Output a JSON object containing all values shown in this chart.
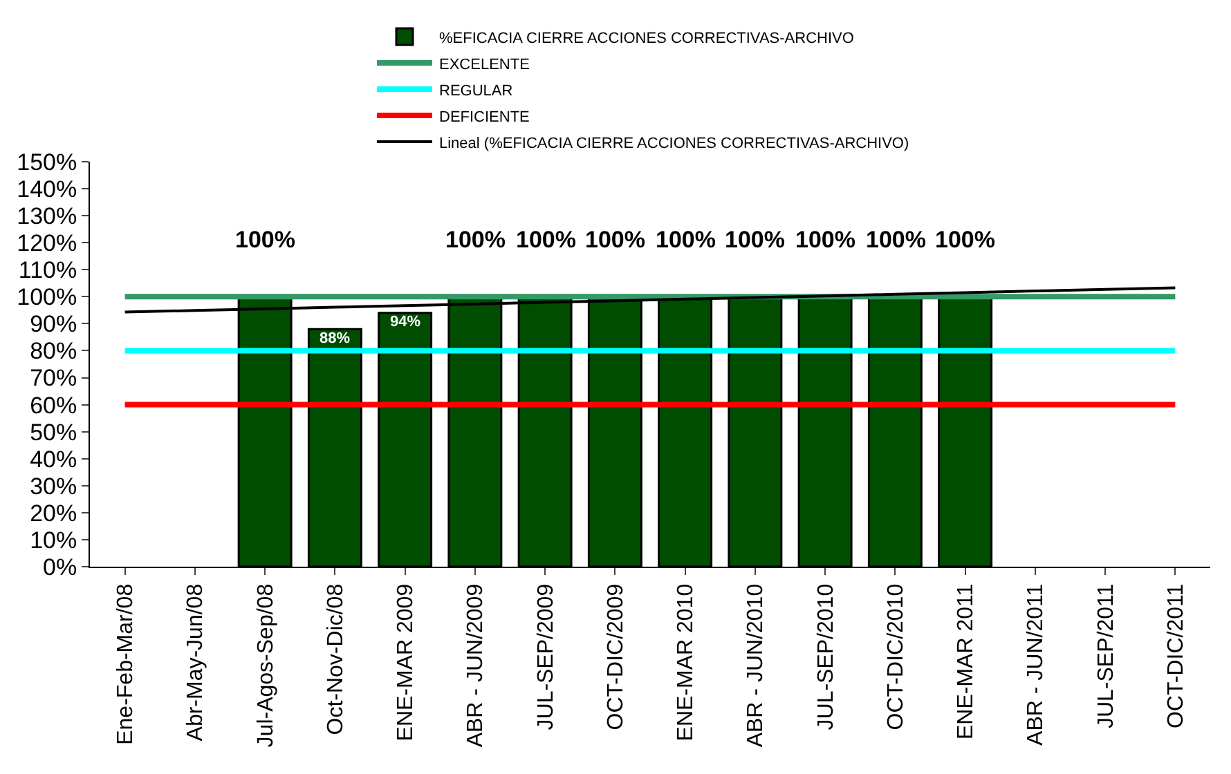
{
  "chart_data": {
    "type": "bar",
    "categories": [
      "Ene-Feb-Mar/08",
      "Abr-May-Jun/08",
      "Jul-Agos-Sep/08",
      "Oct-Nov-Dic/08",
      "ENE-MAR 2009",
      "ABR - JUN/2009",
      "JUL-SEP/2009",
      "OCT-DIC/2009",
      "ENE-MAR 2010",
      "ABR - JUN/2010",
      "JUL-SEP/2010",
      "OCT-DIC/2010",
      "ENE-MAR 2011",
      "ABR - JUN/2011",
      "JUL-SEP/2011",
      "OCT-DIC/2011"
    ],
    "series": [
      {
        "name": "%EFICACIA CIERRE ACCIONES CORRECTIVAS-ARCHIVO",
        "color": "#004d00",
        "values": [
          null,
          null,
          100,
          88,
          94,
          100,
          100,
          100,
          100,
          100,
          100,
          100,
          100,
          null,
          null,
          null
        ],
        "value_labels": [
          null,
          null,
          "100%",
          "88%",
          "94%",
          "100%",
          "100%",
          "100%",
          "100%",
          "100%",
          "100%",
          "100%",
          "100%",
          null,
          null,
          null
        ]
      },
      {
        "name": "EXCELENTE",
        "type": "line",
        "color": "#339966",
        "values": [
          100,
          100,
          100,
          100,
          100,
          100,
          100,
          100,
          100,
          100,
          100,
          100,
          100,
          100,
          100,
          100
        ]
      },
      {
        "name": "REGULAR",
        "type": "line",
        "color": "#00ffff",
        "values": [
          80,
          80,
          80,
          80,
          80,
          80,
          80,
          80,
          80,
          80,
          80,
          80,
          80,
          80,
          80,
          80
        ]
      },
      {
        "name": "DEFICIENTE",
        "type": "line",
        "color": "#ff0000",
        "values": [
          60,
          60,
          60,
          60,
          60,
          60,
          60,
          60,
          60,
          60,
          60,
          60,
          60,
          60,
          60,
          60
        ]
      },
      {
        "name": "Lineal (%EFICACIA CIERRE ACCIONES CORRECTIVAS-ARCHIVO)",
        "type": "line",
        "color": "#000000",
        "values": [
          94.3,
          94.9,
          95.5,
          96.1,
          96.7,
          97.3,
          97.9,
          98.5,
          99.1,
          99.7,
          100.3,
          100.9,
          101.5,
          102.1,
          102.7,
          103.3
        ]
      }
    ],
    "ylim": [
      0,
      150
    ],
    "yticks": [
      {
        "value": 0,
        "label": "0%"
      },
      {
        "value": 10,
        "label": "10%"
      },
      {
        "value": 20,
        "label": "20%"
      },
      {
        "value": 30,
        "label": "30%"
      },
      {
        "value": 40,
        "label": "40%"
      },
      {
        "value": 50,
        "label": "50%"
      },
      {
        "value": 60,
        "label": "60%"
      },
      {
        "value": 70,
        "label": "70%"
      },
      {
        "value": 80,
        "label": "80%"
      },
      {
        "value": 90,
        "label": "90%"
      },
      {
        "value": 100,
        "label": "100%"
      },
      {
        "value": 110,
        "label": "110%"
      },
      {
        "value": 120,
        "label": "120%"
      },
      {
        "value": 130,
        "label": "130%"
      },
      {
        "value": 140,
        "label": "140%"
      },
      {
        "value": 150,
        "label": "150%"
      }
    ],
    "legend": "top",
    "marker": "none"
  }
}
